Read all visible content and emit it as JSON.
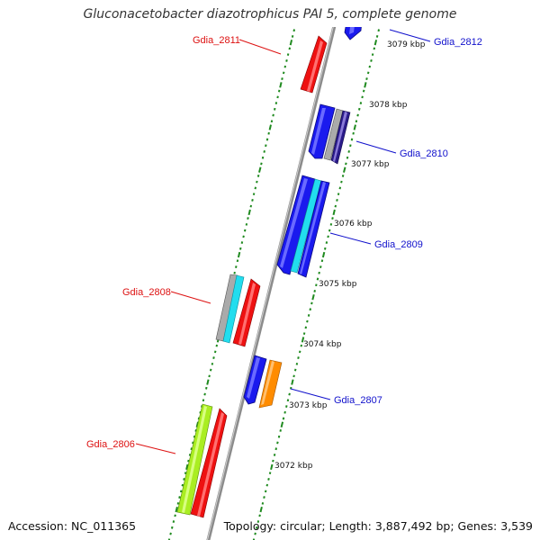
{
  "title": "Gluconacetobacter diazotrophicus PAI 5, complete genome",
  "footer": {
    "accession": "Accession: NC_011365",
    "topology": "Topology: circular; Length: 3,887,492 bp; Genes: 3,539"
  },
  "colors": {
    "backbone": "#8c8c8c",
    "tick": "#1f8a1f",
    "forward_label": "#1010cc",
    "reverse_label": "#dd1111"
  },
  "kbp_labels": [
    "3079 kbp",
    "3078 kbp",
    "3077 kbp",
    "3076 kbp",
    "3075 kbp",
    "3074 kbp",
    "3073 kbp",
    "3072 kbp"
  ],
  "gene_labels": [
    {
      "name": "Gdia_2811",
      "strand": "reverse"
    },
    {
      "name": "Gdia_2812",
      "strand": "forward"
    },
    {
      "name": "Gdia_2810",
      "strand": "forward"
    },
    {
      "name": "Gdia_2809",
      "strand": "forward"
    },
    {
      "name": "Gdia_2808",
      "strand": "reverse"
    },
    {
      "name": "Gdia_2807",
      "strand": "forward"
    },
    {
      "name": "Gdia_2806",
      "strand": "reverse"
    }
  ]
}
